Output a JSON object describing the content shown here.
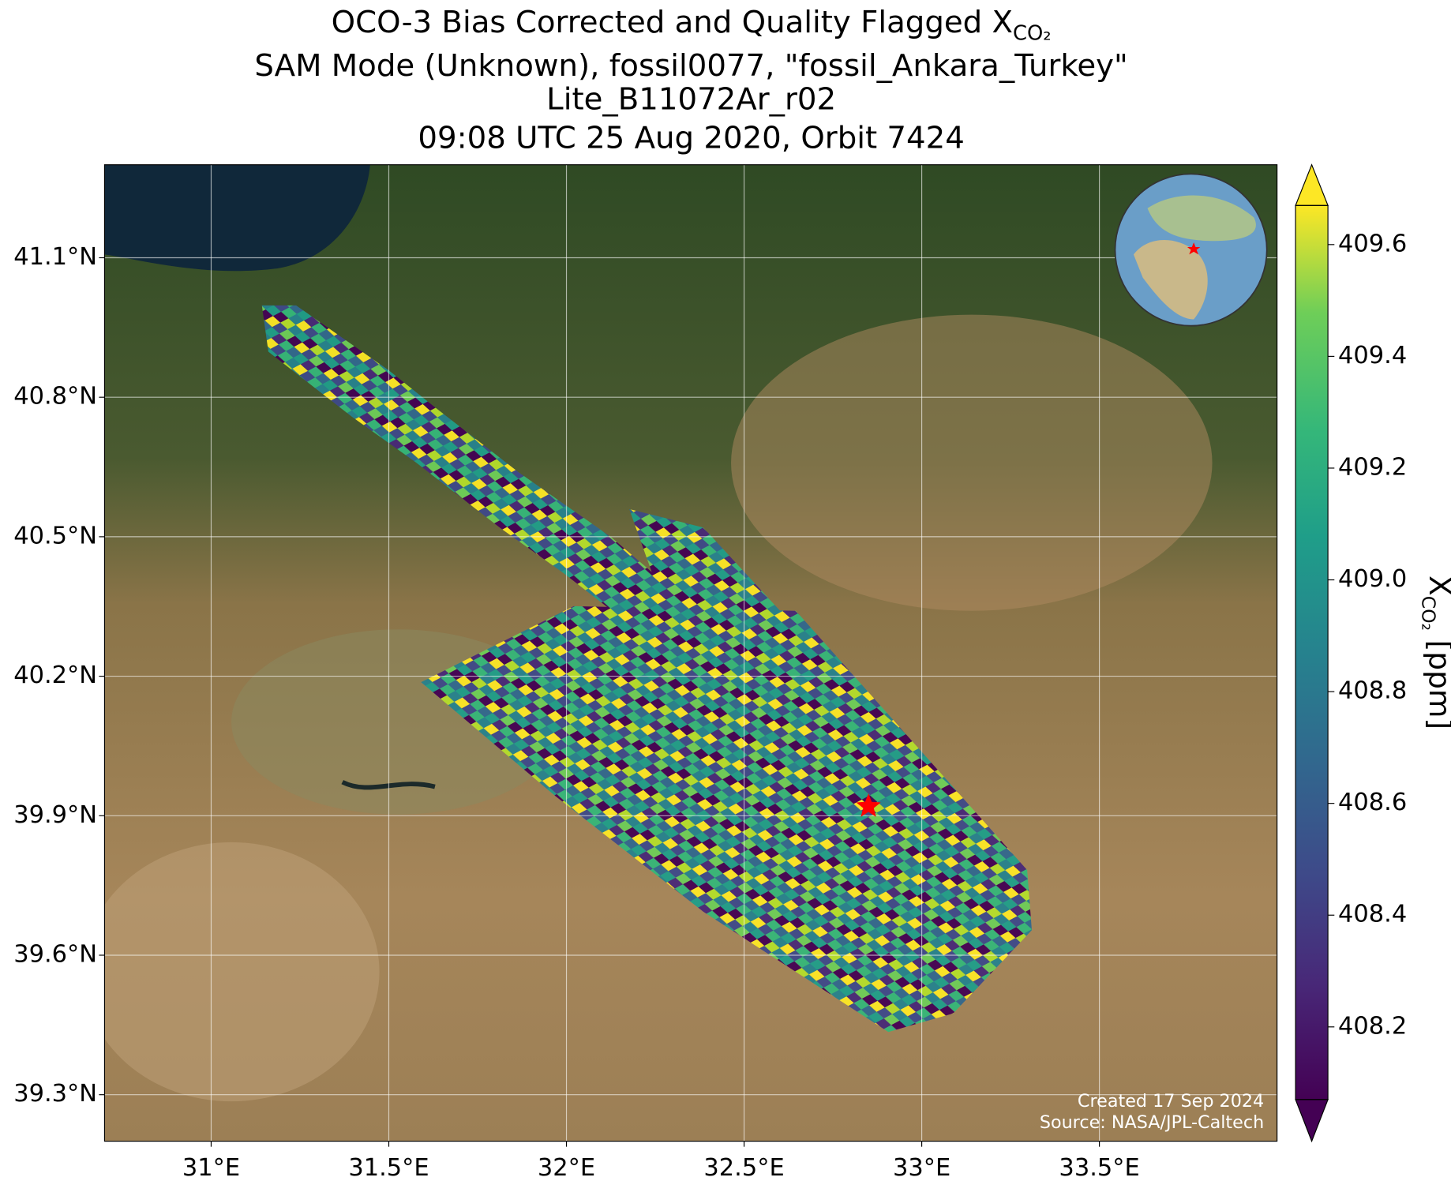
{
  "chart_data": {
    "type": "map",
    "title_lines": [
      "OCO-3 Bias Corrected and Quality Flagged X",
      "SAM Mode (Unknown), fossil0077, \"fossil_Ankara_Turkey\"",
      "Lite_B11072Ar_r02",
      "09:08 UTC 25 Aug 2020, Orbit 7424"
    ],
    "title_subscript": "CO₂",
    "xlim": [
      30.7,
      34.0
    ],
    "ylim": [
      39.2,
      41.3
    ],
    "xticks": [
      {
        "value": 31,
        "label": "31°E"
      },
      {
        "value": 31.5,
        "label": "31.5°E"
      },
      {
        "value": 32,
        "label": "32°E"
      },
      {
        "value": 32.5,
        "label": "32.5°E"
      },
      {
        "value": 33,
        "label": "33°E"
      },
      {
        "value": 33.5,
        "label": "33.5°E"
      }
    ],
    "yticks": [
      {
        "value": 39.3,
        "label": "39.3°N"
      },
      {
        "value": 39.6,
        "label": "39.6°N"
      },
      {
        "value": 39.9,
        "label": "39.9°N"
      },
      {
        "value": 40.2,
        "label": "40.2°N"
      },
      {
        "value": 40.5,
        "label": "40.5°N"
      },
      {
        "value": 40.8,
        "label": "40.8°N"
      },
      {
        "value": 41.1,
        "label": "41.1°N"
      }
    ],
    "grid": true,
    "site": {
      "lon": 32.85,
      "lat": 39.92,
      "color": "#ff0000"
    },
    "colorbar": {
      "clim": [
        408.07,
        409.67
      ],
      "ticks": [
        408.2,
        408.4,
        408.6,
        408.8,
        409.0,
        409.2,
        409.4,
        409.6
      ],
      "tick_labels": [
        "408.2",
        "408.4",
        "408.6",
        "408.8",
        "409.0",
        "409.2",
        "409.4",
        "409.6"
      ],
      "label_main": "X",
      "label_subscript": "CO₂",
      "label_unit": "[ppm]"
    },
    "credits": [
      "Created 17 Sep 2024",
      "Source: NASA/JPL-Caltech"
    ]
  }
}
